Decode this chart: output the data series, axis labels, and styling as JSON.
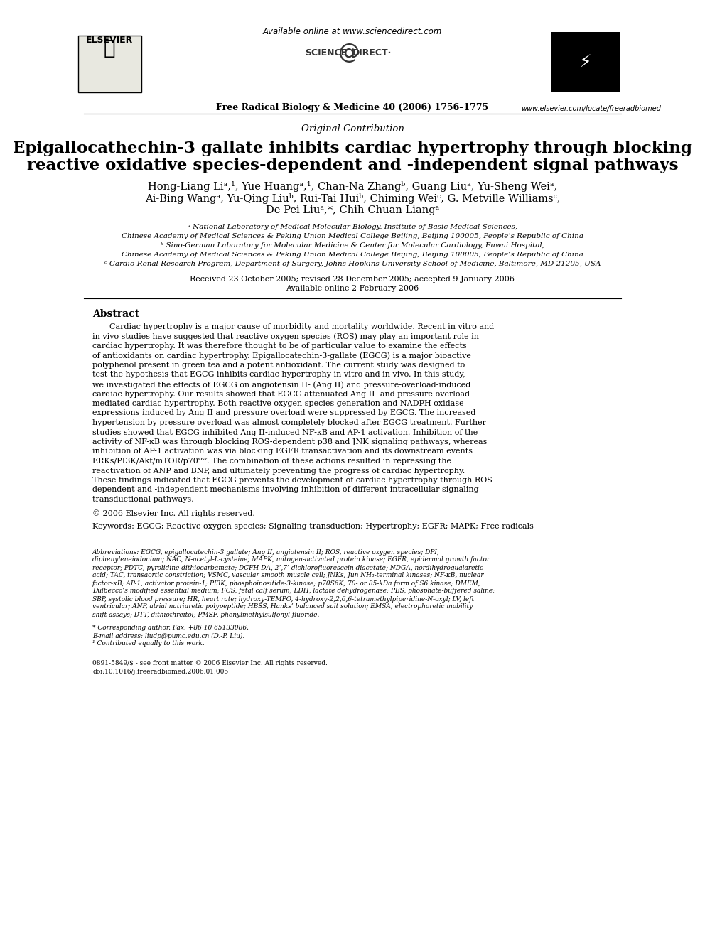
{
  "bg_color": "#ffffff",
  "top_available_text": "Available online at www.sciencedirect.com",
  "journal_line": "Free Radical Biology & Medicine 40 (2006) 1756–1775",
  "website": "www.elsevier.com/locate/freeradbiomed",
  "section_label": "Original Contribution",
  "title_line1": "Epigallocathechin-3 gallate inhibits cardiac hypertrophy through blocking",
  "title_line2": "reactive oxidative species-dependent and -independent signal pathways",
  "authors_line1": "Hong-Liang Liᵃ,¹, Yue Huangᵃ,¹, Chan-Na Zhangᵇ, Guang Liuᵃ, Yu-Sheng Weiᵃ,",
  "authors_line2": "Ai-Bing Wangᵃ, Yu-Qing Liuᵇ, Rui-Tai Huiᵇ, Chiming Weiᶜ, G. Metville Williamsᶜ,",
  "authors_line3": "De-Pei Liuᵃ,*, Chih-Chuan Liangᵃ",
  "affil_a": "ᵃ National Laboratory of Medical Molecular Biology, Institute of Basic Medical Sciences,",
  "affil_a2": "Chinese Academy of Medical Sciences & Peking Union Medical College Beijing, Beijing 100005, People’s Republic of China",
  "affil_b": "ᵇ Sino-German Laboratory for Molecular Medicine & Center for Molecular Cardiology, Fuwai Hospital,",
  "affil_b2": "Chinese Academy of Medical Sciences & Peking Union Medical College Beijing, Beijing 100005, People’s Republic of China",
  "affil_c": "ᶜ Cardio-Renal Research Program, Department of Surgery, Johns Hopkins University School of Medicine, Baltimore, MD 21205, USA",
  "received": "Received 23 October 2005; revised 28 December 2005; accepted 9 January 2006",
  "available_online": "Available online 2 February 2006",
  "abstract_title": "Abstract",
  "abstract_text": "Cardiac hypertrophy is a major cause of morbidity and mortality worldwide. Recent in vitro and in vivo studies have suggested that reactive oxygen species (ROS) may play an important role in cardiac hypertrophy. It was therefore thought to be of particular value to examine the effects of antioxidants on cardiac hypertrophy. Epigallocatechin-3-gallate (EGCG) is a major bioactive polyphenol present in green tea and a potent antioxidant. The current study was designed to test the hypothesis that EGCG inhibits cardiac hypertrophy in vitro and in vivo. In this study, we investigated the effects of EGCG on angiotensin II- (Ang II) and pressure-overload-induced cardiac hypertrophy. Our results showed that EGCG attenuated Ang II- and pressure-overload-mediated cardiac hypertrophy. Both reactive oxygen species generation and NADPH oxidase expressions induced by Ang II and pressure overload were suppressed by EGCG. The increased hypertension by pressure overload was almost completely blocked after EGCG treatment. Further studies showed that EGCG inhibited Ang II-induced NF-κB and AP-1 activation. Inhibition of the activity of NF-κB was through blocking ROS-dependent p38 and JNK signaling pathways, whereas inhibition of AP-1 activation was via blocking EGFR transactivation and its downstream events ERKs/PI3K/Akt/mTOR/p70ˢ⁶ᵏ. The combination of these actions resulted in repressing the reactivation of ANP and BNP, and ultimately preventing the progress of cardiac hypertrophy. These findings indicated that EGCG prevents the development of cardiac hypertrophy through ROS-dependent and -independent mechanisms involving inhibition of different intracellular signaling transductional pathways.",
  "copyright": "© 2006 Elsevier Inc. All rights reserved.",
  "keywords_label": "Keywords:",
  "keywords": "EGCG; Reactive oxygen species; Signaling transduction; Hypertrophy; EGFR; MAPK; Free radicals",
  "abbrev_title": "Abbreviations:",
  "abbrev_text": "EGCG, epigallocatechin-3 gallate; Ang II, angiotensin II; ROS, reactive oxygen species; DPI, diphenyleneiodonium; NAC, N-acetyl-L-cysteine; MAPK, mitogen-activated protein kinase; EGFR, epidermal growth factor receptor; PDTC, pyrolidine dithiocarbamate; DCFH-DA, 2’,7’-dichlorofluorescein diacetate; NDGA, nordihydroguaiaretic acid; TAC, transaortic constriction; VSMC, vascular smooth muscle cell; JNKs, Jun NH₂-terminal kinases; NF-κB, nuclear factor-κB; AP-1, activator protein-1; PI3K, phosphoinositide-3-kinase; p70S6K, 70- or 85-kDa form of S6 kinase; DMEM, Dulbecco’s modified essential medium; FCS, fetal calf serum; LDH, lactate dehydrogenase; PBS, phosphate-buffered saline; SBP, systolic blood pressure; HR, heart rate; hydroxy-TEMPO, 4-hydroxy-2,2,6,6-tetramethylpiperidine-N-oxyl; LV, left ventricular; ANP, atrial natriuretic polypeptide; HBSS, Hanks’ balanced salt solution; EMSA, electrophoretic mobility shift assays; DTT, dithiothreitol; PMSF, phenylmethylsulfonyl fluoride.",
  "corresponding_note": "* Corresponding author. Fax: +86 10 65133086.",
  "email_note": "E-mail address: liudp@pumc.edu.cn (D.-P. Liu).",
  "contrib_note": "¹ Contributed equally to this work.",
  "issn_line": "0891-5849/$ - see front matter © 2006 Elsevier Inc. All rights reserved.",
  "doi_line": "doi:10.1016/j.freeradbiomed.2006.01.005"
}
